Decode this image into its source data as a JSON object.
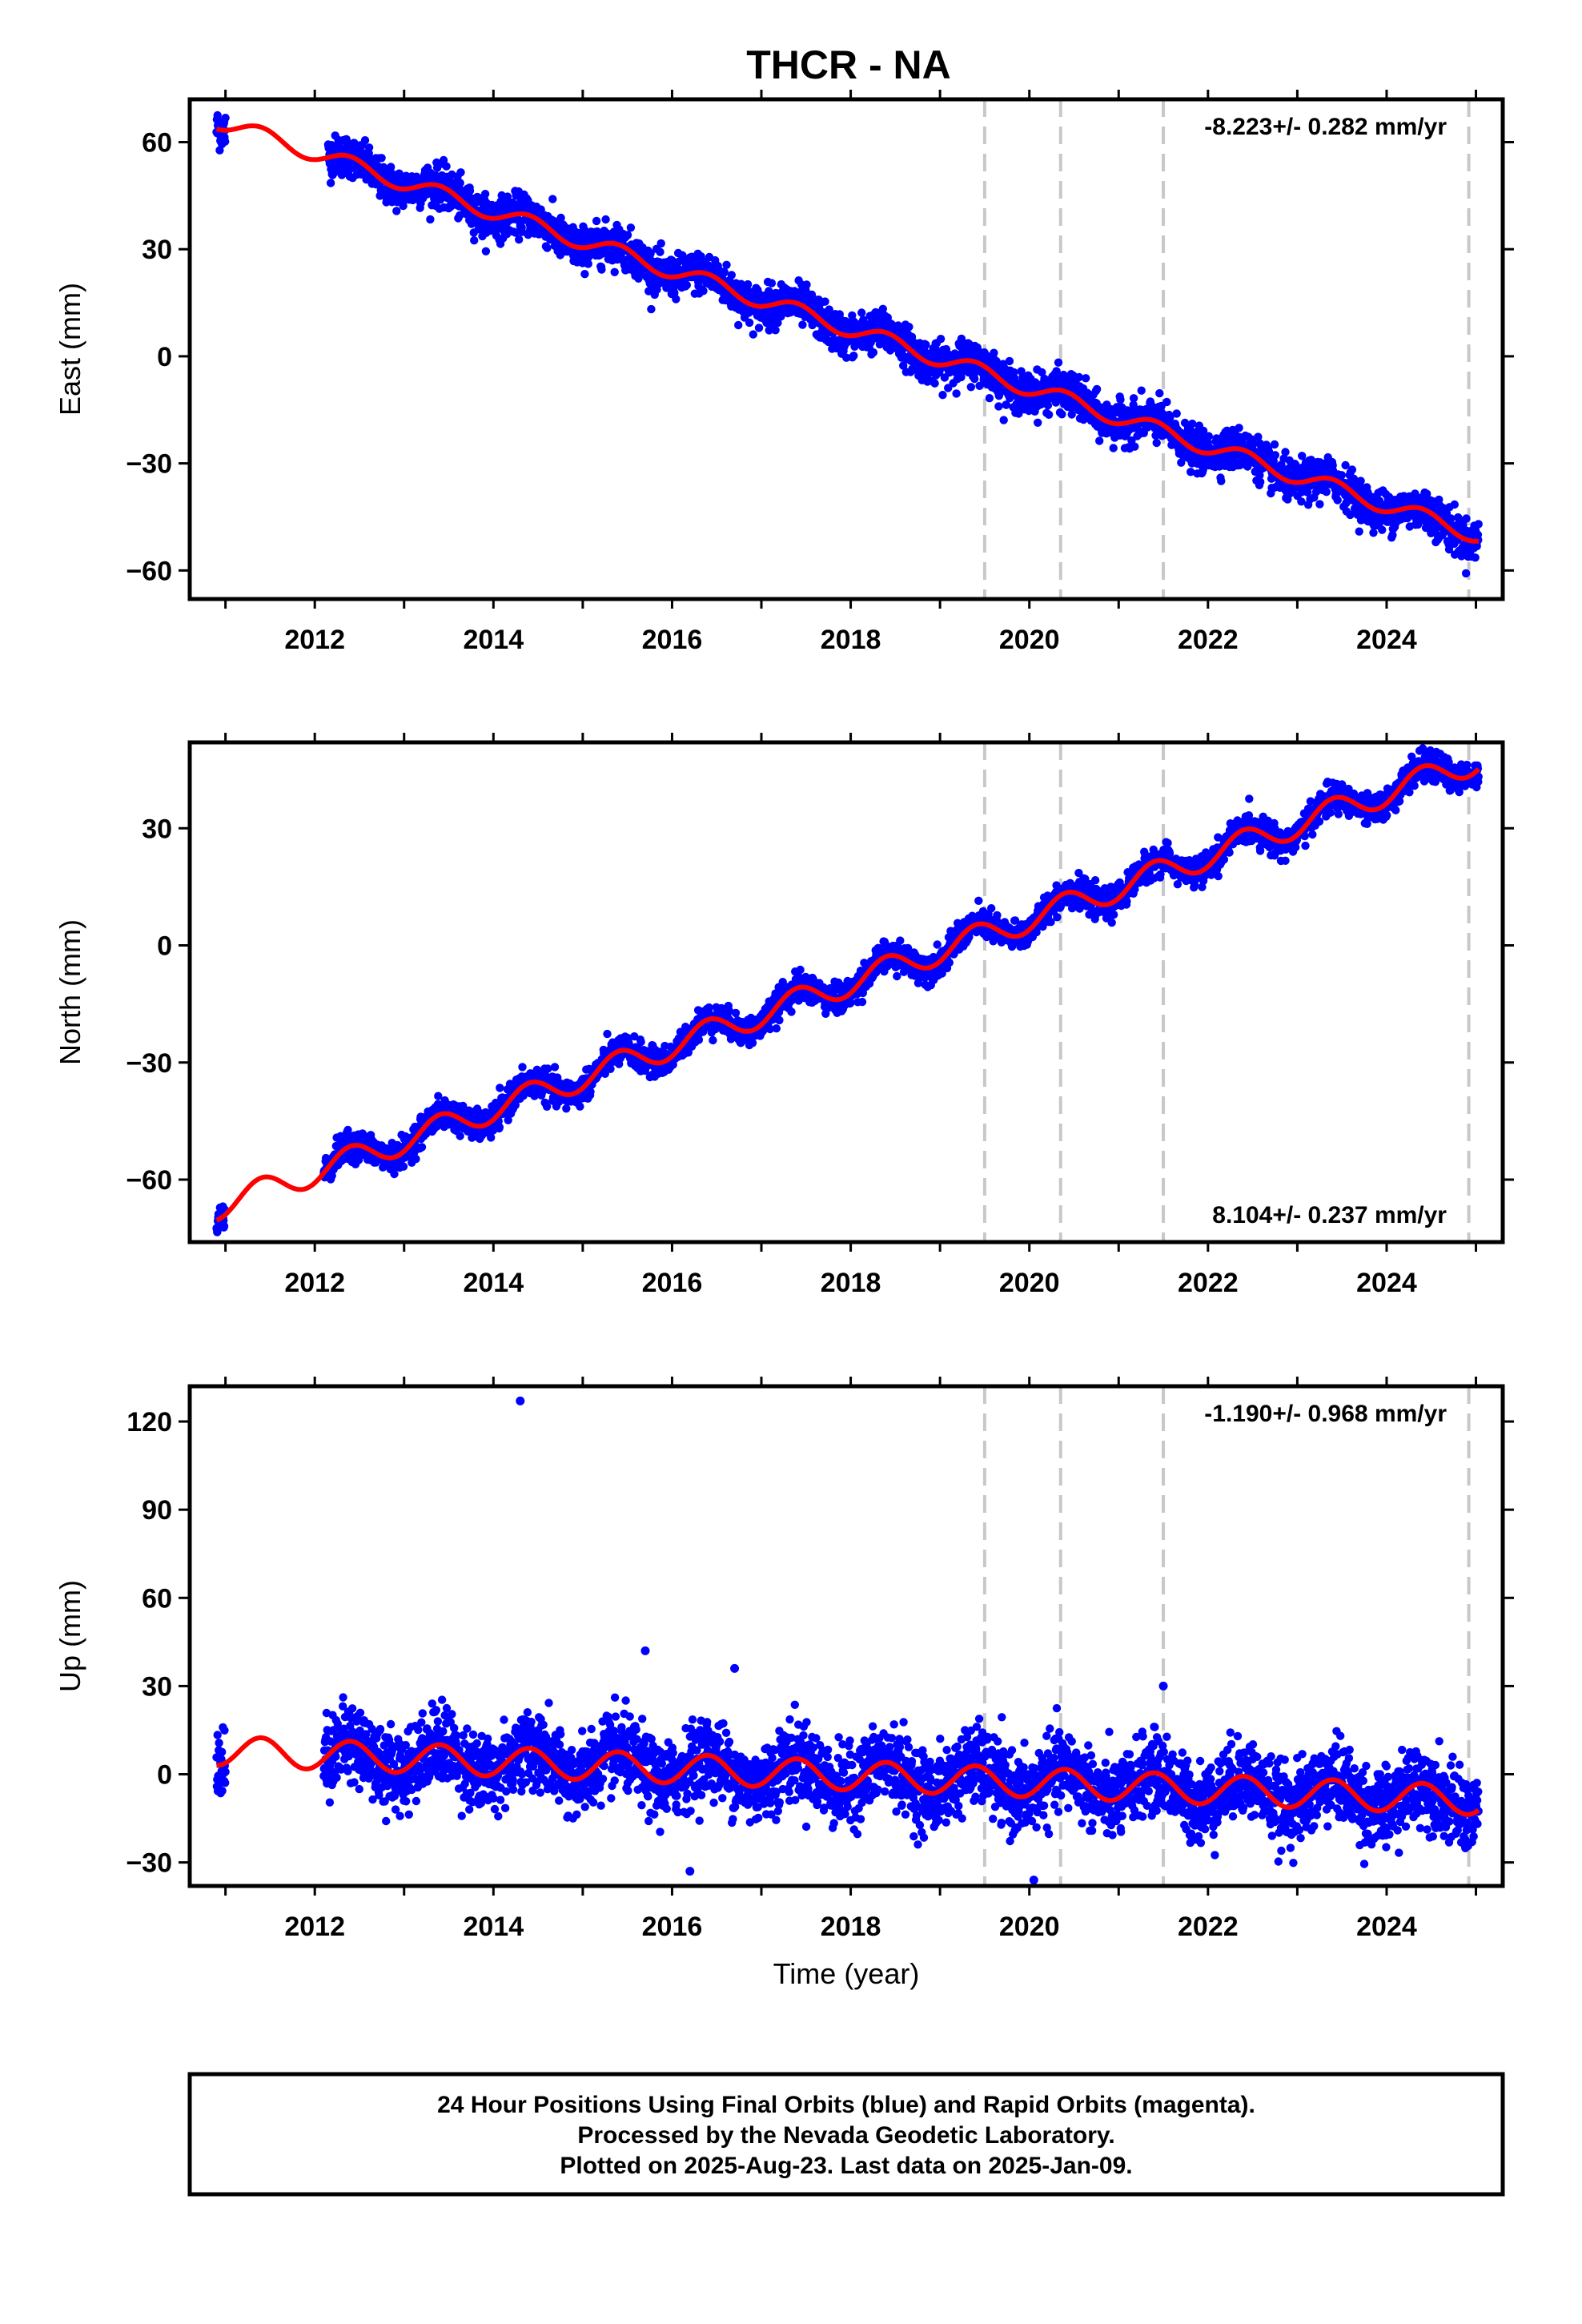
{
  "title": "THCR - NA",
  "footer": {
    "line1": "24 Hour Positions Using Final Orbits (blue) and Rapid Orbits (magenta).",
    "line2": "Processed by the Nevada Geodetic Laboratory.",
    "line3": "Plotted on 2025-Aug-23. Last data on 2025-Jan-09."
  },
  "colors": {
    "points": "#0000ff",
    "model": "#ff0000",
    "event_lines": "#c8c8c8",
    "frame": "#000000"
  },
  "chart_data": [
    {
      "type": "scatter",
      "component": "east",
      "ylabel": "East (mm)",
      "xlabel": "",
      "rate_label": "-8.223+/- 0.282 mm/yr",
      "rate_position": "top-right",
      "xlim": [
        2010.6,
        2025.3
      ],
      "ylim": [
        -68,
        72
      ],
      "yticks": [
        60,
        30,
        0,
        -30,
        -60
      ],
      "ytick_labels": [
        "60",
        "30",
        "0",
        "−30",
        "−60"
      ],
      "xticks": [
        2012,
        2014,
        2016,
        2018,
        2020,
        2022,
        2024
      ],
      "xtick_labels": [
        "2012",
        "2014",
        "2016",
        "2018",
        "2020",
        "2022",
        "2024"
      ],
      "event_lines": [
        2019.5,
        2020.35,
        2021.5,
        2024.92
      ],
      "rate_mm_per_yr": -8.223,
      "series": [
        {
          "segments": [
            [
              2010.9,
              2011.0
            ],
            [
              2012.15,
              2024.92
            ],
            [
              2024.95,
              2025.03
            ]
          ],
          "trend_at_start": 66.0,
          "trend_start_year": 2010.9,
          "seasonal": [
            [
              2010.9,
              2011.0,
              0.0
            ],
            [
              2012.15,
              2025.03,
              2.2
            ]
          ],
          "scatter_mm": 2.8
        }
      ],
      "model_seasonal_amplitude": 2.3
    },
    {
      "type": "scatter",
      "component": "north",
      "ylabel": "North (mm)",
      "xlabel": "",
      "rate_label": "8.104+/- 0.237 mm/yr",
      "rate_position": "bottom-right",
      "xlim": [
        2010.6,
        2025.3
      ],
      "ylim": [
        -76,
        52
      ],
      "yticks": [
        30,
        0,
        -30,
        -60
      ],
      "ytick_labels": [
        "30",
        "0",
        "−30",
        "−60"
      ],
      "xticks": [
        2012,
        2014,
        2016,
        2018,
        2020,
        2022,
        2024
      ],
      "xtick_labels": [
        "2012",
        "2014",
        "2016",
        "2018",
        "2020",
        "2022",
        "2024"
      ],
      "event_lines": [
        2019.5,
        2020.35,
        2021.5,
        2024.92
      ],
      "rate_mm_per_yr": 8.104,
      "series": [
        {
          "segments": [
            [
              2010.9,
              2011.0
            ],
            [
              2012.1,
              2024.92
            ],
            [
              2024.95,
              2025.03
            ]
          ],
          "trend_at_start": -67.0,
          "trend_start_year": 2010.9,
          "scatter_mm": 1.8
        }
      ],
      "model_seasonal_amplitude": 3.4
    },
    {
      "type": "scatter",
      "component": "up",
      "ylabel": "Up (mm)",
      "xlabel": "Time (year)",
      "rate_label": "-1.190+/- 0.968 mm/yr",
      "rate_position": "top-right",
      "xlim": [
        2010.6,
        2025.3
      ],
      "ylim": [
        -38,
        132
      ],
      "yticks": [
        120,
        90,
        60,
        30,
        0,
        -30
      ],
      "ytick_labels": [
        "120",
        "90",
        "60",
        "30",
        "0",
        "−30"
      ],
      "xticks": [
        2012,
        2014,
        2016,
        2018,
        2020,
        2022,
        2024
      ],
      "xtick_labels": [
        "2012",
        "2014",
        "2016",
        "2018",
        "2020",
        "2022",
        "2024"
      ],
      "event_lines": [
        2019.5,
        2020.35,
        2021.5,
        2024.92
      ],
      "rate_mm_per_yr": -1.19,
      "series": [
        {
          "segments": [
            [
              2010.9,
              2011.0
            ],
            [
              2012.1,
              2024.92
            ],
            [
              2024.95,
              2025.03
            ]
          ],
          "trend_at_start": 8.0,
          "trend_start_year": 2010.9,
          "scatter_mm": 6.5,
          "outliers": [
            [
              2014.3,
              127
            ],
            [
              2015.7,
              42
            ],
            [
              2016.7,
              36
            ],
            [
              2020.05,
              -36
            ],
            [
              2016.2,
              -33
            ],
            [
              2021.5,
              30
            ]
          ]
        }
      ],
      "model_seasonal_amplitude": 5.0
    }
  ]
}
